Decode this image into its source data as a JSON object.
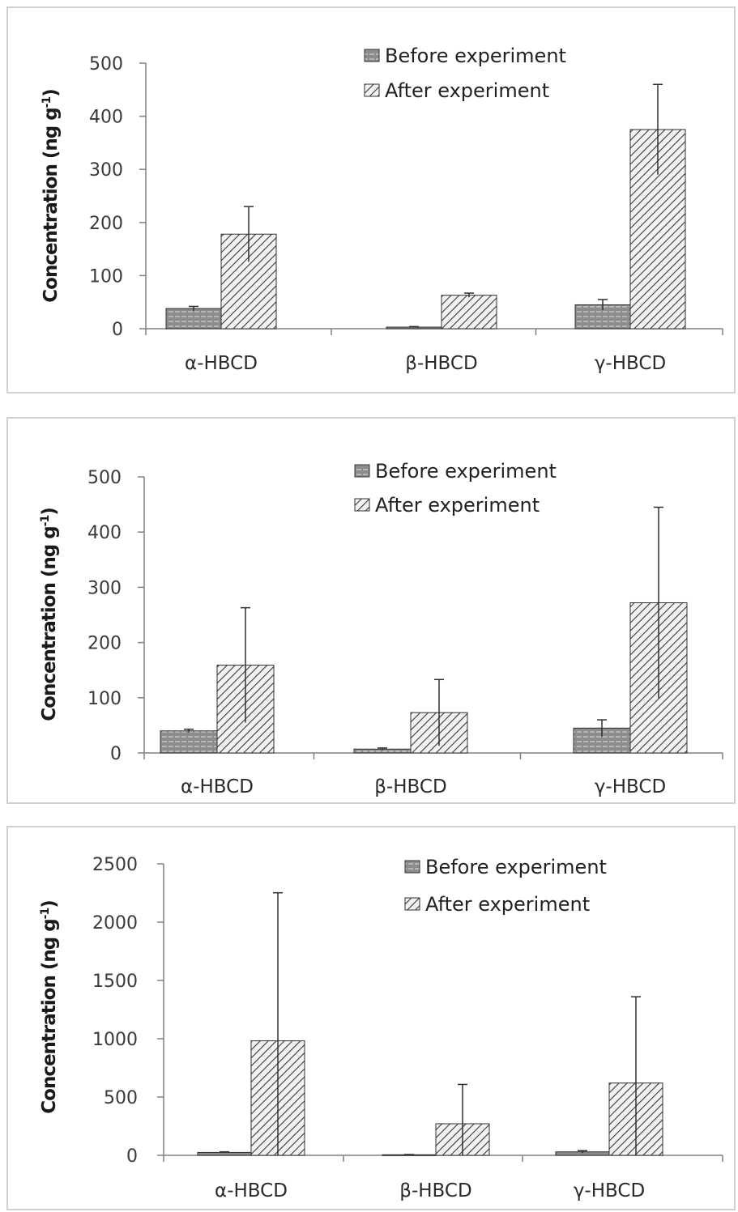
{
  "colors": {
    "before_fill": "#8c8c8c",
    "after_fill": "#f2f2f2",
    "hatch": "#3a3a3a",
    "axis": "#808080",
    "bar_stroke": "#303030",
    "error_bar": "#303030"
  },
  "legend": {
    "before": "Before experiment",
    "after": "After experiment"
  },
  "chart_data": [
    {
      "type": "bar",
      "categories": [
        "α-HBCD",
        "β-HBCD",
        "γ-HBCD"
      ],
      "ylabel": "Concentration (ng g-1)",
      "ylabel_main": "Concentration (ng g",
      "ylabel_sup": "-1",
      "ylabel_close": ")",
      "ylim": [
        0,
        500
      ],
      "yticks": [
        "0",
        "100",
        "200",
        "300",
        "400",
        "500"
      ],
      "ytick_values": [
        0,
        100,
        200,
        300,
        400,
        500
      ],
      "grid": false,
      "legend_position": "top-right",
      "series": [
        {
          "name": "Before experiment",
          "values": [
            38,
            3,
            45
          ],
          "errors": [
            4,
            1,
            10
          ]
        },
        {
          "name": "After experiment",
          "values": [
            178,
            63,
            375
          ],
          "errors": [
            52,
            4,
            85
          ]
        }
      ]
    },
    {
      "type": "bar",
      "categories": [
        "α-HBCD",
        "β-HBCD",
        "γ-HBCD"
      ],
      "ylabel": "Concentration (ng g-1)",
      "ylabel_main": "Concentration (ng g",
      "ylabel_sup": "-1",
      "ylabel_close": ")",
      "ylim": [
        0,
        500
      ],
      "yticks": [
        "0",
        "100",
        "200",
        "300",
        "400",
        "500"
      ],
      "ytick_values": [
        0,
        100,
        200,
        300,
        400,
        500
      ],
      "grid": false,
      "legend_position": "top-right",
      "series": [
        {
          "name": "Before experiment",
          "values": [
            40,
            7,
            45
          ],
          "errors": [
            3,
            2,
            15
          ]
        },
        {
          "name": "After experiment",
          "values": [
            159,
            73,
            272
          ],
          "errors": [
            104,
            60,
            173
          ]
        }
      ]
    },
    {
      "type": "bar",
      "categories": [
        "α-HBCD",
        "β-HBCD",
        "γ-HBCD"
      ],
      "ylabel": "Concentration (ng g-1)",
      "ylabel_main": "Concentration (ng g",
      "ylabel_sup": "-1",
      "ylabel_close": ")",
      "ylim": [
        0,
        2500
      ],
      "yticks": [
        "0",
        "500",
        "1000",
        "1500",
        "2000",
        "2500"
      ],
      "ytick_values": [
        0,
        500,
        1000,
        1500,
        2000,
        2500
      ],
      "grid": false,
      "legend_position": "top-right",
      "series": [
        {
          "name": "Before experiment",
          "values": [
            25,
            5,
            30
          ],
          "errors": [
            5,
            2,
            10
          ]
        },
        {
          "name": "After experiment",
          "values": [
            982,
            271,
            620
          ],
          "errors": [
            1270,
            337,
            740
          ]
        }
      ]
    }
  ]
}
